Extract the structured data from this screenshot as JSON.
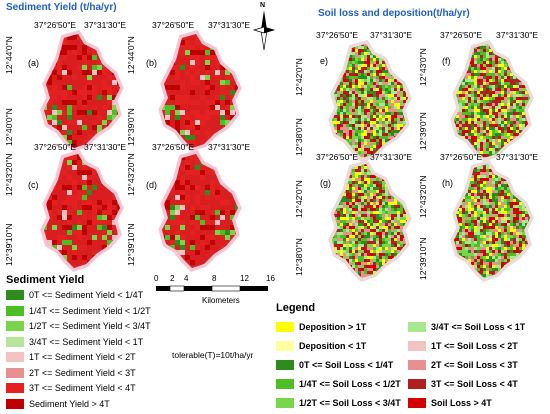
{
  "sediment": {
    "title": "Sediment Yield (t/ha/yr)",
    "coord_top": [
      "37°26'50\"E",
      "37°31'30\"E"
    ],
    "coord_left_top": "12°44'0\"N",
    "coord_left_bottom_a": "12°40'0\"N",
    "coord_left_bottom_b": "12°39'0\"N",
    "coord_left_top_c": "12°43'20\"N",
    "coord_left_bottom_c": "12°39'10\"N",
    "panels": [
      "(a)",
      "(b)",
      "(c)",
      "(d)"
    ]
  },
  "soil": {
    "title": "Soil loss and deposition(t/ha/yr)",
    "coord_top": [
      "37°26'50\"E",
      "37°31'30\"E"
    ],
    "coord_left_e": "12°42'0\"N",
    "coord_left_e2": "12°38'0\"N",
    "coord_left_f": "12°43'0\"N",
    "coord_left_f2": "12°39'0\"N",
    "coord_left_g": "12°42'0\"N",
    "coord_left_g2": "12°38'0\"N",
    "coord_left_h": "12°43'20\"N",
    "coord_left_h2": "12°39'10\"N",
    "panels": [
      "e)",
      "(f)",
      "(g)",
      "(h)"
    ]
  },
  "north": {
    "label": "N"
  },
  "scale": {
    "ticks": [
      "0",
      "2",
      "4",
      "8",
      "12",
      "16"
    ],
    "unit": "Kilometers"
  },
  "note": "tolerable(T)=10t/ha/yr",
  "sediment_legend": {
    "title": "Sediment Yield",
    "items": [
      {
        "label": "0T <= Sediment Yield < 1/4T",
        "color": "#2e8b1e"
      },
      {
        "label": "1/4T <= Sediment Yield < 1/2T",
        "color": "#4cbf24"
      },
      {
        "label": "1/2T <= Sediment Yield < 3/4T",
        "color": "#79d64a"
      },
      {
        "label": "3/4T <= Sediment Yield < 1T",
        "color": "#b7e59a"
      },
      {
        "label": "1T <= Sediment Yield < 2T",
        "color": "#f4c2c2"
      },
      {
        "label": "2T <= Sediment Yield < 3T",
        "color": "#e89090"
      },
      {
        "label": "3T <= Sediment Yield < 4T",
        "color": "#e42020"
      },
      {
        "label": "Sediment Yield > 4T",
        "color": "#c00000"
      }
    ]
  },
  "soil_legend": {
    "title": "Legend",
    "col1": [
      {
        "label": "Deposition > 1T",
        "color": "#ffff00"
      },
      {
        "label": "Deposition < 1T",
        "color": "#ffffa0"
      },
      {
        "label": "0T <= Soil Loss < 1/4T",
        "color": "#2e8b1e"
      },
      {
        "label": "1/4T <= Soil Loss < 1/2T",
        "color": "#4cbf24"
      },
      {
        "label": "1/2T <= Soil Loss < 3/4T",
        "color": "#79d64a"
      }
    ],
    "col2": [
      {
        "label": "3/4T <= Soil Loss < 1T",
        "color": "#a8e890"
      },
      {
        "label": "1T <= Soil Loss < 2T",
        "color": "#f4c2c2"
      },
      {
        "label": "2T <= Soil Loss < 3T",
        "color": "#e89090"
      },
      {
        "label": "3T <= Soil Loss < 4T",
        "color": "#b02020"
      },
      {
        "label": "Soil Loss > 4T",
        "color": "#d40000"
      }
    ]
  }
}
